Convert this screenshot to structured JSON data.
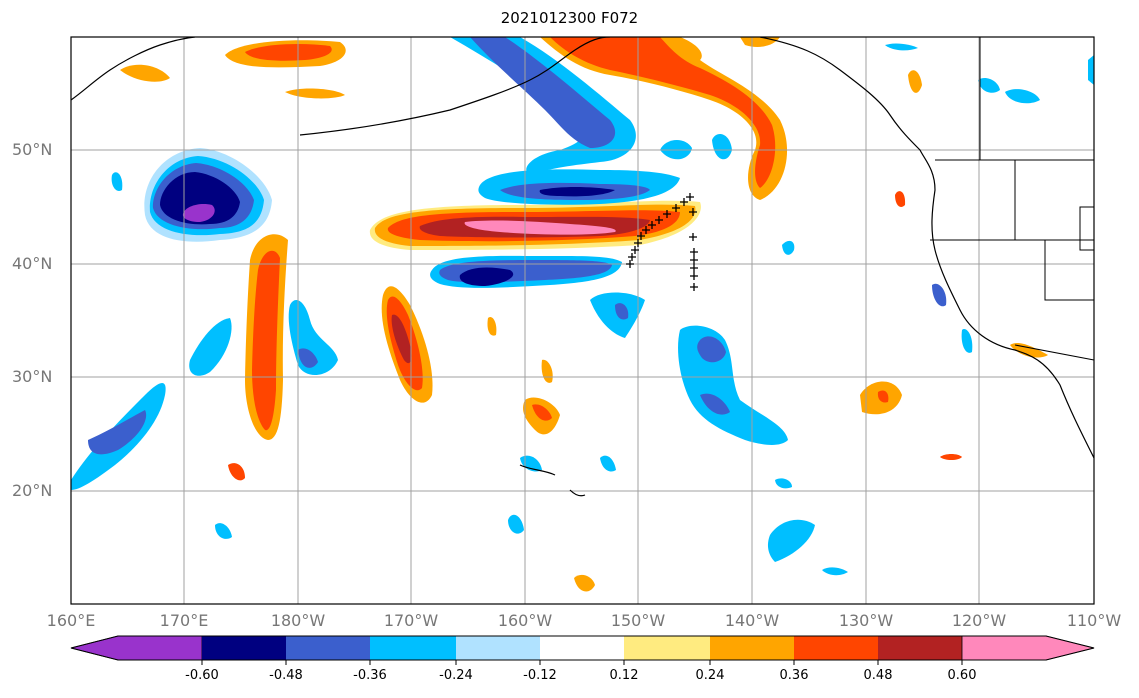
{
  "title": "2021012300 F072",
  "lat_labels": [
    "50°N",
    "40°N",
    "30°N",
    "20°N"
  ],
  "lon_labels": [
    "160°E",
    "170°E",
    "180°W",
    "170°W",
    "160°W",
    "150°W",
    "140°W",
    "130°W",
    "120°W",
    "110°W"
  ],
  "colorbar": {
    "ticks": [
      "-0.60",
      "-0.48",
      "-0.36",
      "-0.24",
      "-0.12",
      "0.12",
      "0.24",
      "0.36",
      "0.48",
      "0.60"
    ],
    "colors": [
      "#9933cc",
      "#000080",
      "#3b5fcd",
      "#00bfff",
      "#b0e2ff",
      "#ffffff",
      "#ffeb80",
      "#ffa500",
      "#ff4500",
      "#b22222",
      "#ff88bb"
    ]
  },
  "map": {
    "lon_range": [
      "160°E",
      "110°W"
    ],
    "lat_range": [
      "10°N",
      "60°N"
    ],
    "grid": true,
    "markers": "+"
  }
}
